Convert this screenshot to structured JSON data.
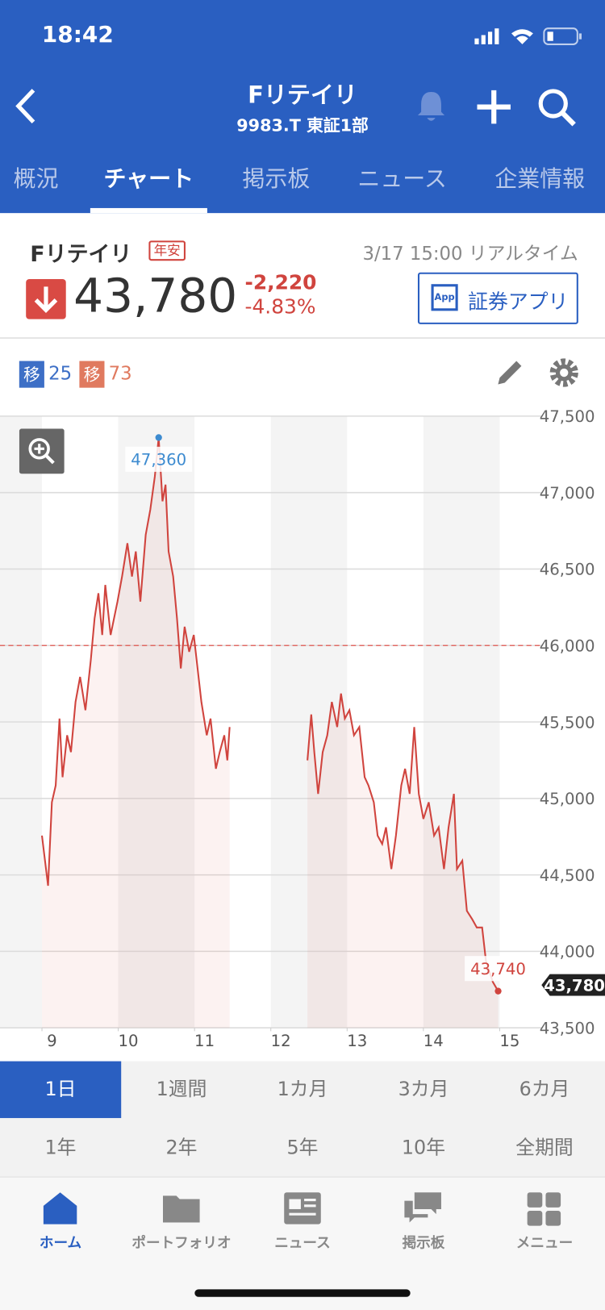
{
  "status_bar": {
    "time": "18:42"
  },
  "header": {
    "title": "Fリテイリ",
    "subtitle": "9983.T 東証1部"
  },
  "tabs": [
    "概況",
    "チャート",
    "掲示板",
    "ニュース",
    "企業情報"
  ],
  "active_tab": 1,
  "quote": {
    "name": "Fリテイリ",
    "badge": "年安",
    "timestamp": "3/17 15:00 リアルタイム",
    "price": "43,780",
    "change": "-2,220",
    "change_percent": "-4.83%",
    "app_button": {
      "icon": "App",
      "label": "証券アプリ"
    }
  },
  "indicators": [
    {
      "label": "移",
      "period": 25,
      "color": "#3d6fc6"
    },
    {
      "label": "移",
      "period": 73,
      "color": "#e07a5f"
    }
  ],
  "chart_data": {
    "type": "line",
    "color": "#d0443e",
    "x": [
      9.0,
      9.08,
      9.13,
      9.18,
      9.23,
      9.27,
      9.33,
      9.38,
      9.44,
      9.5,
      9.57,
      9.64,
      9.69,
      9.74,
      9.79,
      9.83,
      9.9,
      9.99,
      10.05,
      10.12,
      10.18,
      10.23,
      10.29,
      10.36,
      10.42,
      10.48,
      10.53,
      10.58,
      10.62,
      10.66,
      10.72,
      10.77,
      10.82,
      10.87,
      10.93,
      10.99,
      11.04,
      11.09,
      11.16,
      11.21,
      11.28,
      11.33,
      11.39,
      11.43,
      11.46,
      12.0,
      12.48,
      12.53,
      12.57,
      12.62,
      12.68,
      12.74,
      12.8,
      12.87,
      12.92,
      12.97,
      13.03,
      13.09,
      13.16,
      13.23,
      13.28,
      13.35,
      13.4,
      13.46,
      13.51,
      13.58,
      13.64,
      13.71,
      13.76,
      13.82,
      13.88,
      13.94,
      14.0,
      14.07,
      14.14,
      14.2,
      14.27,
      14.33,
      14.4,
      14.44,
      14.51,
      14.57,
      14.64,
      14.7,
      14.77,
      14.82,
      14.91,
      14.98
    ],
    "values": [
      44757,
      44429,
      44975,
      45085,
      45522,
      45139,
      45413,
      45303,
      45631,
      45795,
      45577,
      45904,
      46178,
      46342,
      46069,
      46396,
      46069,
      46287,
      46451,
      46669,
      46451,
      46615,
      46287,
      46724,
      46888,
      47107,
      47360,
      46943,
      47052,
      46615,
      46451,
      46178,
      45850,
      46123,
      45959,
      46069,
      45850,
      45631,
      45413,
      45522,
      45194,
      45303,
      45413,
      45249,
      45467,
      null,
      45249,
      45549,
      45303,
      45030,
      45303,
      45413,
      45631,
      45467,
      45686,
      45522,
      45577,
      45413,
      45467,
      45139,
      45085,
      44975,
      44757,
      44702,
      44811,
      44538,
      44757,
      45085,
      45194,
      45030,
      45467,
      45030,
      44866,
      44975,
      44757,
      44811,
      44538,
      44811,
      45030,
      44538,
      44593,
      44265,
      44210,
      44156,
      44156,
      43937,
      43800,
      43740
    ],
    "xlim": [
      8.45,
      15.57
    ],
    "ylim": [
      43500,
      47500
    ],
    "xticks": [
      9,
      10,
      11,
      12,
      13,
      14,
      15
    ],
    "yticks": [
      {
        "value": 43500,
        "label": "43,500"
      },
      {
        "value": 44000,
        "label": "44,000"
      },
      {
        "value": 44500,
        "label": "44,500"
      },
      {
        "value": 45000,
        "label": "45,000"
      },
      {
        "value": 45500,
        "label": "45,500"
      },
      {
        "value": 46000,
        "label": "46,000"
      },
      {
        "value": 46500,
        "label": "46,500"
      },
      {
        "value": 47000,
        "label": "47,000"
      },
      {
        "value": 47500,
        "label": "47,500"
      }
    ],
    "grid": true,
    "reference_line": 46000,
    "annotations": [
      {
        "x": 10.53,
        "value": 47360,
        "label": "47,360",
        "color": "#3d8bd0"
      },
      {
        "x": 14.98,
        "value": 43740,
        "label": "43,740",
        "color": "#d0443e"
      }
    ],
    "last_price": {
      "value": 43780,
      "label": "43,780"
    }
  },
  "periods": [
    "1日",
    "1週間",
    "1カ月",
    "3カ月",
    "6カ月",
    "1年",
    "2年",
    "5年",
    "10年",
    "全期間"
  ],
  "active_period": 0,
  "bottom_nav": [
    {
      "label": "ホーム",
      "active": true
    },
    {
      "label": "ポートフォリオ",
      "active": false
    },
    {
      "label": "ニュース",
      "active": false
    },
    {
      "label": "掲示板",
      "active": false
    },
    {
      "label": "メニュー",
      "active": false
    }
  ]
}
